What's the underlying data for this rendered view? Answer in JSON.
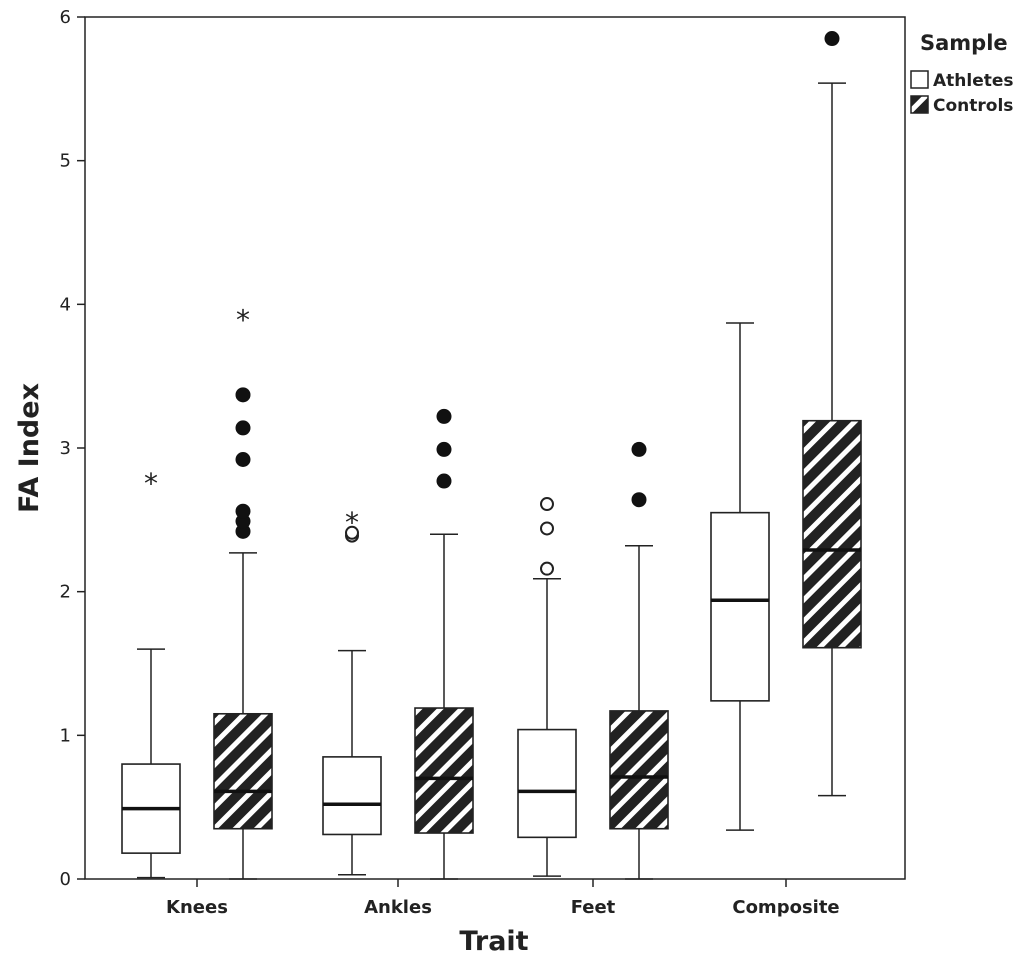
{
  "chart_data": {
    "type": "boxplot",
    "xlabel": "Trait",
    "ylabel": "FA Index",
    "ylim": [
      0,
      6
    ],
    "yticks": [
      0,
      1,
      2,
      3,
      4,
      5,
      6
    ],
    "grid": false,
    "legend": {
      "title": "Sample",
      "position": "top-right",
      "entries": [
        {
          "name": "Athletes",
          "fill": "plain"
        },
        {
          "name": "Controls",
          "fill": "hatched"
        }
      ]
    },
    "categories": [
      "Knees",
      "Ankles",
      "Feet",
      "Composite"
    ],
    "series": [
      {
        "name": "Athletes",
        "boxes": [
          {
            "whisker_low": 0.01,
            "q1": 0.18,
            "median": 0.49,
            "q3": 0.8,
            "whisker_high": 1.6,
            "outliers": [],
            "extremes": [
              2.77
            ]
          },
          {
            "whisker_low": 0.03,
            "q1": 0.31,
            "median": 0.52,
            "q3": 0.85,
            "whisker_high": 1.59,
            "outliers": [
              2.39,
              2.41
            ],
            "extremes": [
              2.5
            ]
          },
          {
            "whisker_low": 0.02,
            "q1": 0.29,
            "median": 0.61,
            "q3": 1.04,
            "whisker_high": 2.09,
            "outliers": [
              2.16,
              2.44,
              2.61
            ],
            "extremes": []
          },
          {
            "whisker_low": 0.34,
            "q1": 1.24,
            "median": 1.94,
            "q3": 2.55,
            "whisker_high": 3.87,
            "outliers": [],
            "extremes": []
          }
        ]
      },
      {
        "name": "Controls",
        "boxes": [
          {
            "whisker_low": 0.0,
            "q1": 0.35,
            "median": 0.61,
            "q3": 1.15,
            "whisker_high": 2.27,
            "outliers": [
              2.42,
              2.49,
              2.56,
              2.92,
              3.14,
              3.37
            ],
            "extremes": [
              3.91
            ]
          },
          {
            "whisker_low": 0.0,
            "q1": 0.32,
            "median": 0.7,
            "q3": 1.19,
            "whisker_high": 2.4,
            "outliers": [
              2.77,
              2.99,
              3.22
            ],
            "extremes": []
          },
          {
            "whisker_low": 0.0,
            "q1": 0.35,
            "median": 0.71,
            "q3": 1.17,
            "whisker_high": 2.32,
            "outliers": [
              2.64,
              2.99
            ],
            "extremes": []
          },
          {
            "whisker_low": 0.58,
            "q1": 1.61,
            "median": 2.29,
            "q3": 3.19,
            "whisker_high": 5.54,
            "outliers": [
              5.85
            ],
            "extremes": []
          }
        ]
      }
    ],
    "colors": {
      "axis": "#222222",
      "box_fill": "#ffffff",
      "hatch_bg": "#222222",
      "hatch_line": "#ffffff",
      "outlier_open": "#ffffff",
      "outlier_filled": "#111111"
    }
  }
}
